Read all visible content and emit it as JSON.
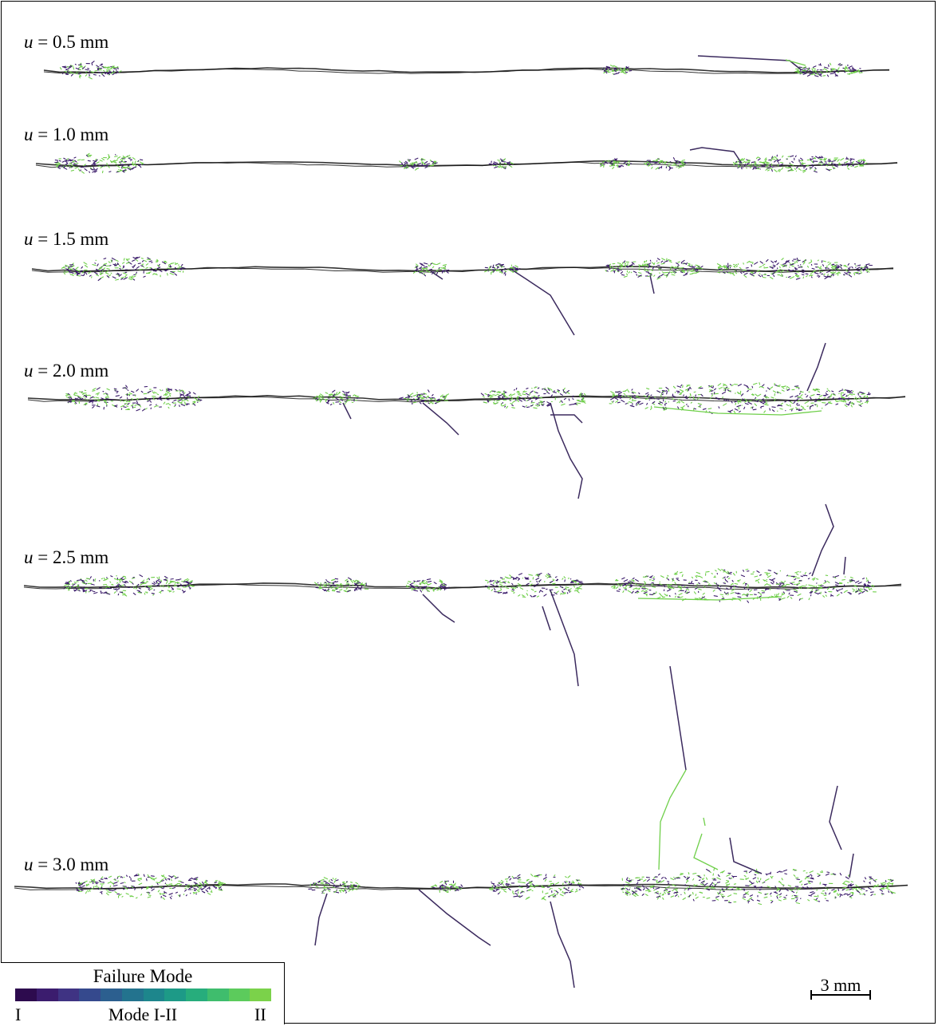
{
  "stages": [
    {
      "var": "u",
      "text": " = 0.5 mm"
    },
    {
      "var": "u",
      "text": " = 1.0 mm"
    },
    {
      "var": "u",
      "text": " = 1.5 mm"
    },
    {
      "var": "u",
      "text": " = 2.0 mm"
    },
    {
      "var": "u",
      "text": " = 2.5 mm"
    },
    {
      "var": "u",
      "text": " = 3.0 mm"
    }
  ],
  "legend": {
    "title": "Failure Mode",
    "tick_left": "I",
    "tick_mid": "Mode I-II",
    "tick_right": "II",
    "colors": [
      "#2d0b4e",
      "#3b1c6e",
      "#3f3383",
      "#35498d",
      "#2c5f8f",
      "#23738e",
      "#1d868c",
      "#1d9a87",
      "#27ad7c",
      "#3fbd6d",
      "#5ccb5c",
      "#7bd24a"
    ]
  },
  "scalebar": {
    "label": "3 mm"
  },
  "colors": {
    "mode_i": "#3a1a6a",
    "mode_ii": "#6fcf4a",
    "crack": "#111111"
  }
}
